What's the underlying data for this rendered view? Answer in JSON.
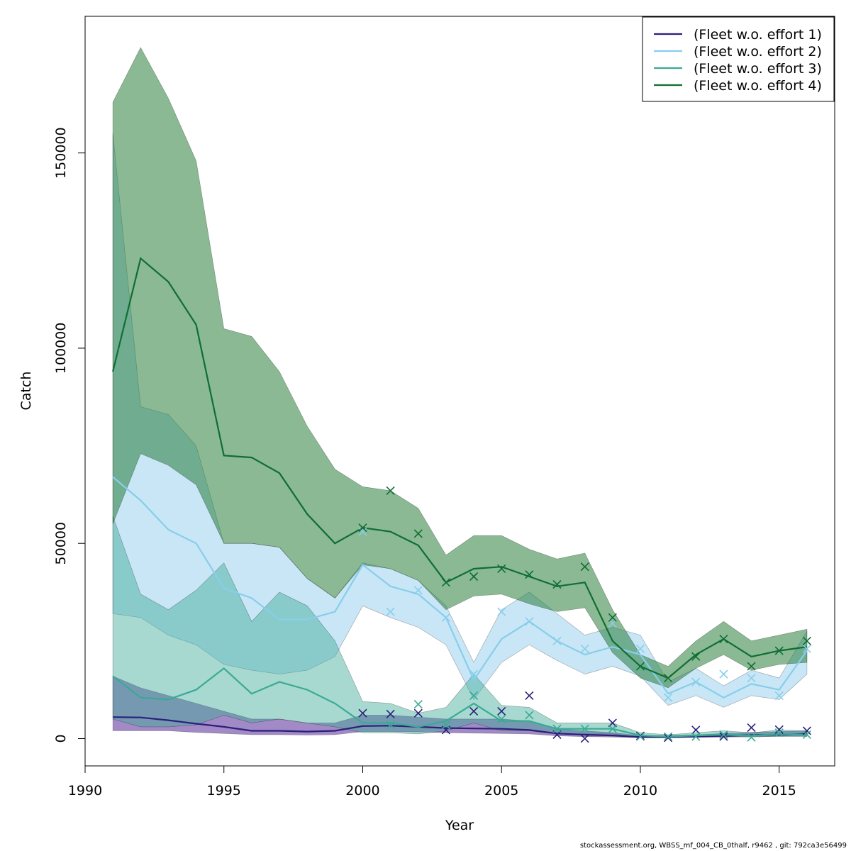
{
  "chart_data": {
    "type": "line",
    "xlabel": "Year",
    "ylabel": "Catch",
    "xlim": [
      1990,
      2017
    ],
    "ylim": [
      -7000,
      185000
    ],
    "x_ticks": [
      1990,
      1995,
      2000,
      2005,
      2010,
      2015
    ],
    "y_ticks": [
      0,
      50000,
      100000,
      150000
    ],
    "legend_position": "top-right",
    "x": [
      1991,
      1992,
      1993,
      1994,
      1995,
      1996,
      1997,
      1998,
      1999,
      2000,
      2001,
      2002,
      2003,
      2004,
      2005,
      2006,
      2007,
      2008,
      2009,
      2010,
      2011,
      2012,
      2013,
      2014,
      2015,
      2016
    ],
    "series": [
      {
        "name": "(Fleet w.o. effort 1)",
        "color": "#2b1f7a",
        "band_color": "rgba(100,60,160,0.6)",
        "fit": [
          5500,
          5400,
          4700,
          3800,
          3000,
          2000,
          2000,
          1800,
          2000,
          3200,
          3300,
          3000,
          2700,
          2600,
          2500,
          2200,
          1300,
          1000,
          800,
          400,
          400,
          500,
          700,
          900,
          1000,
          1200
        ],
        "lower": [
          2000,
          2000,
          2000,
          1600,
          1300,
          1000,
          1000,
          900,
          1000,
          1800,
          1800,
          1700,
          1500,
          1400,
          1300,
          1200,
          700,
          500,
          400,
          200,
          200,
          300,
          400,
          500,
          600,
          700
        ],
        "upper": [
          16000,
          13000,
          11000,
          9000,
          7000,
          5000,
          5000,
          4000,
          4000,
          6000,
          6000,
          5500,
          5000,
          5000,
          5000,
          4500,
          2500,
          2000,
          1500,
          800,
          800,
          1000,
          1300,
          1600,
          1800,
          2000
        ],
        "obs_x": [
          2000,
          2001,
          2002,
          2003,
          2004,
          2005,
          2006,
          2007,
          2008,
          2009,
          2010,
          2011,
          2012,
          2013,
          2014,
          2015,
          2016
        ],
        "obs": [
          6500,
          6300,
          6500,
          2200,
          7000,
          7000,
          11000,
          1000,
          0,
          4000,
          700,
          200,
          2200,
          500,
          2800,
          2300,
          2000
        ]
      },
      {
        "name": "(Fleet w.o. effort 2)",
        "color": "#87ceeb",
        "band_color": "rgba(135,200,235,0.45)",
        "fit": [
          67000,
          61000,
          53500,
          50000,
          38500,
          36000,
          30500,
          30500,
          32500,
          44500,
          39000,
          37000,
          31000,
          15000,
          25500,
          30000,
          25000,
          21500,
          23500,
          21500,
          11500,
          14500,
          10500,
          14000,
          12500,
          22500
        ],
        "lower": [
          32000,
          31000,
          26500,
          24000,
          19000,
          17500,
          16500,
          17500,
          21000,
          34000,
          31000,
          28500,
          24000,
          10000,
          19500,
          24000,
          20000,
          16500,
          18500,
          16000,
          8500,
          11000,
          8000,
          11000,
          10000,
          16500
        ],
        "upper": [
          155000,
          85000,
          83000,
          75000,
          50000,
          50000,
          49000,
          41000,
          36000,
          45000,
          43500,
          40500,
          34000,
          19500,
          33000,
          37500,
          32000,
          26500,
          28500,
          26500,
          14500,
          18000,
          13500,
          17500,
          15500,
          27500
        ],
        "obs_x": [
          2000,
          2001,
          2002,
          2003,
          2004,
          2005,
          2006,
          2007,
          2008,
          2009,
          2010,
          2011,
          2012,
          2013,
          2014,
          2015,
          2016
        ],
        "obs": [
          53000,
          32500,
          38000,
          31000,
          16500,
          32500,
          30000,
          25000,
          23000,
          29500,
          23000,
          10500,
          14500,
          16500,
          15500,
          11000,
          23000
        ]
      },
      {
        "name": "(Fleet w.o. effort 3)",
        "color": "#3aaa94",
        "band_color": "rgba(60,170,150,0.45)",
        "fit": [
          16000,
          10500,
          10000,
          12500,
          18000,
          11500,
          14500,
          12500,
          9000,
          4000,
          4000,
          3000,
          4500,
          9000,
          4500,
          4500,
          2500,
          2500,
          2500,
          800,
          500,
          800,
          1000,
          700,
          1200,
          1000
        ],
        "lower": [
          5000,
          3000,
          3000,
          3500,
          6000,
          4000,
          5000,
          4000,
          3000,
          1500,
          1500,
          1200,
          2000,
          4000,
          2000,
          2000,
          1200,
          1200,
          1200,
          300,
          200,
          400,
          500,
          400,
          600,
          500
        ],
        "upper": [
          57000,
          37000,
          33000,
          38000,
          45000,
          30000,
          37500,
          34000,
          25000,
          9500,
          9000,
          6500,
          8000,
          16500,
          8500,
          8000,
          4000,
          4000,
          4000,
          1500,
          1000,
          1500,
          2000,
          1500,
          2200,
          2000
        ],
        "obs_x": [
          2001,
          2002,
          2003,
          2004,
          2005,
          2006,
          2007,
          2008,
          2009,
          2010,
          2011,
          2012,
          2013,
          2014,
          2015,
          2016
        ],
        "obs": [
          3500,
          8800,
          3500,
          11000,
          5000,
          6000,
          2500,
          2500,
          2500,
          500,
          500,
          500,
          1000,
          300,
          1500,
          1000
        ]
      },
      {
        "name": "(Fleet w.o. effort 4)",
        "color": "#0f6e32",
        "band_color": "rgba(30,120,50,0.52)",
        "fit": [
          94000,
          123000,
          117000,
          106000,
          72500,
          72000,
          68000,
          57500,
          50000,
          54000,
          53000,
          49500,
          40000,
          43500,
          44000,
          41500,
          39000,
          40000,
          25000,
          18500,
          15500,
          21500,
          25500,
          21000,
          22500,
          23500
        ],
        "lower": [
          55000,
          73000,
          70000,
          65000,
          50000,
          50000,
          49000,
          41000,
          36000,
          44500,
          43500,
          40500,
          33000,
          36500,
          37000,
          34500,
          32500,
          33500,
          22000,
          15500,
          13000,
          18000,
          21500,
          17500,
          19000,
          19500
        ],
        "upper": [
          163000,
          177000,
          164000,
          148000,
          105000,
          103000,
          94000,
          80000,
          69000,
          64500,
          63500,
          59000,
          47000,
          52000,
          52000,
          48500,
          46000,
          47500,
          33000,
          21500,
          18500,
          25000,
          30000,
          25000,
          26500,
          28000
        ],
        "obs_x": [
          2000,
          2001,
          2002,
          2003,
          2004,
          2005,
          2006,
          2007,
          2008,
          2009,
          2010,
          2011,
          2012,
          2013,
          2014,
          2015,
          2016
        ],
        "obs": [
          54000,
          63500,
          52500,
          40000,
          41500,
          43500,
          42000,
          39500,
          44000,
          31000,
          18500,
          15500,
          21000,
          25500,
          18500,
          22500,
          25000
        ]
      }
    ]
  },
  "footer": "stockassessment.org, WBSS_mf_004_CB_0thalf, r9462 , git: 792ca3e56499"
}
